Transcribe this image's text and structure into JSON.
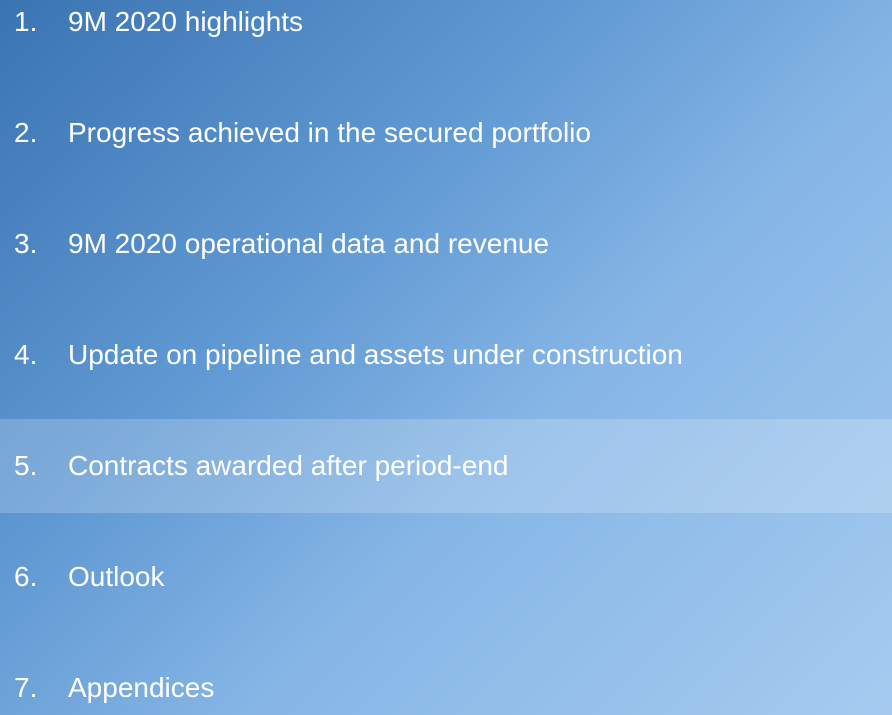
{
  "agenda": {
    "items": [
      {
        "number": "1.",
        "label": "9M 2020 highlights"
      },
      {
        "number": "2.",
        "label": "Progress achieved in the secured portfolio"
      },
      {
        "number": "3.",
        "label": "9M 2020 operational data and revenue"
      },
      {
        "number": "4.",
        "label": "Update on pipeline and assets under construction"
      },
      {
        "number": "5.",
        "label": "Contracts awarded after period-end",
        "selected": true
      },
      {
        "number": "6.",
        "label": "Outlook"
      },
      {
        "number": "7.",
        "label": "Appendices"
      }
    ]
  }
}
